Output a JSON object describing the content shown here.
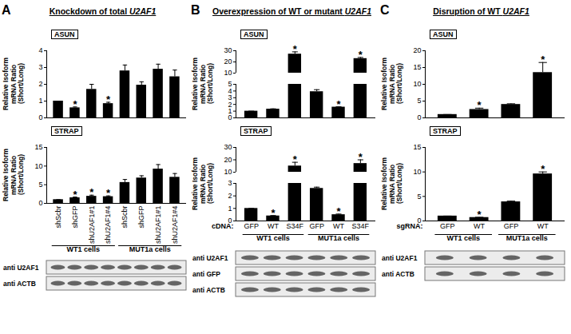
{
  "panels": [
    {
      "letter": "A",
      "title": "Knockdown of total",
      "title_gene": "U2AF1",
      "blot_rows": [
        "anti U2AF1",
        "anti ACTB"
      ]
    },
    {
      "letter": "B",
      "title": "Overexpression of WT or mutant",
      "title_gene": "U2AF1",
      "blot_rows": [
        "anti U2AF1",
        "anti GFP",
        "anti ACTB"
      ],
      "x_label": "cDNA:"
    },
    {
      "letter": "C",
      "title": "Disruption of WT",
      "title_gene": "U2AF1",
      "blot_rows": [
        "anti U2AF1",
        "anti ACTB"
      ],
      "x_label": "sgRNA:"
    }
  ],
  "chart_data": [
    {
      "panel": "A",
      "type": "bar",
      "title": "ASUN",
      "ylabel": "Relative Isoform mRNA Ratio (Short/Long)",
      "color": "#000000",
      "values": [
        1,
        0.6,
        1.7,
        0.85,
        2.8,
        1.95,
        2.9,
        2.45
      ],
      "errors": [
        0,
        0.05,
        0.3,
        0.08,
        0.35,
        0.2,
        0.3,
        0.4
      ],
      "significant": [
        false,
        true,
        false,
        true,
        false,
        false,
        false,
        false
      ],
      "annotation": "*",
      "ylim": [
        0,
        4
      ],
      "yticks": [
        0,
        1,
        2,
        3,
        4
      ],
      "tick_labels": "y"
    },
    {
      "panel": "A",
      "type": "bar",
      "title": "STRAP",
      "ylabel": "Relative Isoform mRNA Ratio (Short/Long)",
      "color": "#000000",
      "categories": [
        "shScbr",
        "shGFP",
        "shU2AF1#1",
        "shU2AF1#4",
        "shScbr",
        "shGFP",
        "shU2AF1#1",
        "shU2AF1#4"
      ],
      "group": [
        "WT1 cells",
        "WT1 cells",
        "WT1 cells",
        "WT1 cells",
        "MUT1a cells",
        "MUT1a cells",
        "MUT1a cells",
        "MUT1a cells"
      ],
      "values": [
        1,
        1.5,
        1.9,
        1.8,
        5.6,
        6.8,
        9.2,
        7.0
      ],
      "errors": [
        0,
        0.2,
        0.3,
        0.2,
        0.8,
        0.6,
        1.2,
        1.0
      ],
      "significant": [
        false,
        true,
        true,
        true,
        false,
        false,
        false,
        false
      ],
      "annotation": "*",
      "ylim": [
        0,
        15
      ],
      "yticks": [
        0,
        5,
        10,
        15
      ]
    },
    {
      "panel": "B",
      "type": "bar",
      "title": "ASUN",
      "ylabel": "Relative Isoform mRNA Ratio (Short/Long)",
      "color": "#000000",
      "values": [
        1,
        1.3,
        27,
        3.9,
        1.6,
        23
      ],
      "errors": [
        0,
        0.05,
        2,
        0.3,
        0.05,
        1
      ],
      "significant": [
        false,
        false,
        true,
        false,
        true,
        true
      ],
      "annotation": "*",
      "ylim": [
        0,
        30
      ],
      "yticks": [
        0,
        1,
        2,
        3,
        4,
        5,
        10,
        20,
        30
      ],
      "axis_break": [
        5,
        10
      ],
      "tick_labels": "y"
    },
    {
      "panel": "B",
      "type": "bar",
      "title": "STRAP",
      "ylabel": "Relative Isoform mRNA Ratio (Short/Long)",
      "color": "#000000",
      "categories": [
        "GFP",
        "WT",
        "S34F",
        "GFP",
        "WT",
        "S34F"
      ],
      "group": [
        "WT1 cells",
        "WT1 cells",
        "WT1 cells",
        "MUT1a cells",
        "MUT1a cells",
        "MUT1a cells"
      ],
      "values": [
        1,
        0.4,
        15,
        2.6,
        0.5,
        17
      ],
      "errors": [
        0,
        0.03,
        3,
        0.1,
        0.05,
        3
      ],
      "significant": [
        false,
        true,
        true,
        false,
        true,
        true
      ],
      "annotation": "*",
      "ylim": [
        0,
        30
      ],
      "yticks": [
        0,
        1,
        2,
        3,
        10,
        20,
        30
      ],
      "axis_break": [
        3,
        10
      ]
    },
    {
      "panel": "C",
      "type": "bar",
      "title": "ASUN",
      "ylabel": "Relative Isoform mRNA Ratio (Short/Long)",
      "color": "#000000",
      "values": [
        1,
        2.5,
        4,
        13.5
      ],
      "errors": [
        0,
        0.4,
        0.2,
        3
      ],
      "significant": [
        false,
        true,
        false,
        true
      ],
      "annotation": "*",
      "ylim": [
        0,
        20
      ],
      "yticks": [
        0,
        5,
        10,
        15,
        20
      ],
      "tick_labels": "y"
    },
    {
      "panel": "C",
      "type": "bar",
      "title": "STRAP",
      "ylabel": "Relative Isoform mRNA Ratio (Short/Long)",
      "color": "#000000",
      "categories": [
        "GFP",
        "WT",
        "GFP",
        "WT"
      ],
      "group": [
        "WT1 cells",
        "WT1 cells",
        "MUT1a cells",
        "MUT1a cells"
      ],
      "values": [
        1,
        0.7,
        3.9,
        9.6
      ],
      "errors": [
        0,
        0.05,
        0.15,
        0.4
      ],
      "significant": [
        false,
        true,
        false,
        true
      ],
      "annotation": "*",
      "ylim": [
        0,
        15
      ],
      "yticks": [
        0,
        5,
        10,
        15
      ]
    }
  ]
}
